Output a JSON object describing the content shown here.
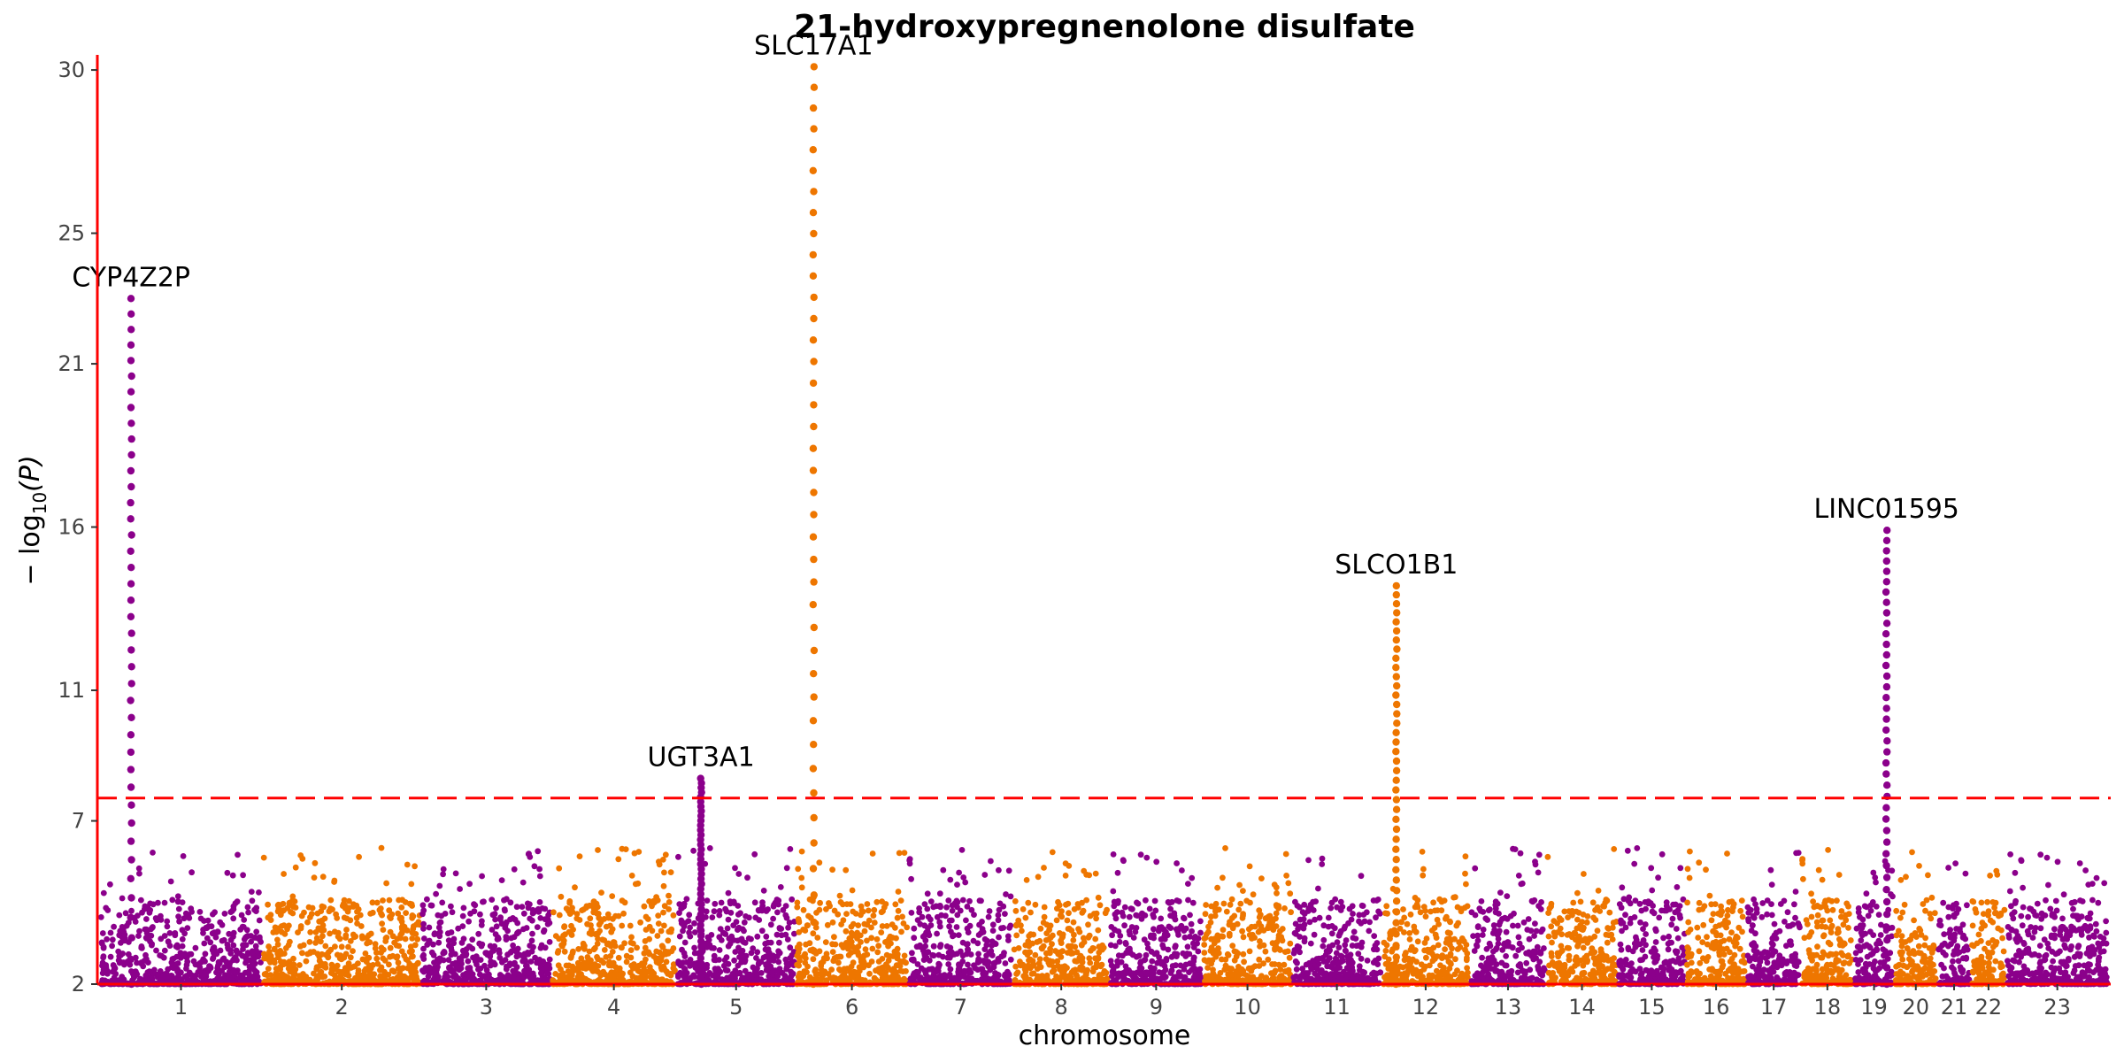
{
  "chart_data": {
    "type": "scatter",
    "title": "21-hydroxypregnenolone disulfate",
    "xlabel": "chromosome",
    "ylabel_prefix": "− log",
    "ylabel_sub": "10",
    "ylabel_suffix": "(P)",
    "yticks": [
      2,
      7,
      11,
      16,
      21,
      25,
      30
    ],
    "ylim": [
      2,
      30.3
    ],
    "significance_threshold": 7.7,
    "colors": {
      "odd": "#8B008B",
      "even": "#EE7600",
      "threshold": "#FF0000",
      "axis": "#FF0000"
    },
    "chromosomes": [
      {
        "label": "1",
        "len": 249,
        "color": "odd"
      },
      {
        "label": "2",
        "len": 243,
        "color": "even"
      },
      {
        "label": "3",
        "len": 198,
        "color": "odd"
      },
      {
        "label": "4",
        "len": 191,
        "color": "even"
      },
      {
        "label": "5",
        "len": 181,
        "color": "odd"
      },
      {
        "label": "6",
        "len": 171,
        "color": "even"
      },
      {
        "label": "7",
        "len": 159,
        "color": "odd"
      },
      {
        "label": "8",
        "len": 146,
        "color": "even"
      },
      {
        "label": "9",
        "len": 141,
        "color": "odd"
      },
      {
        "label": "10",
        "len": 135,
        "color": "even"
      },
      {
        "label": "11",
        "len": 135,
        "color": "odd"
      },
      {
        "label": "12",
        "len": 133,
        "color": "even"
      },
      {
        "label": "13",
        "len": 115,
        "color": "odd"
      },
      {
        "label": "14",
        "len": 107,
        "color": "even"
      },
      {
        "label": "15",
        "len": 102,
        "color": "odd"
      },
      {
        "label": "16",
        "len": 90,
        "color": "even"
      },
      {
        "label": "17",
        "len": 81,
        "color": "odd"
      },
      {
        "label": "18",
        "len": 78,
        "color": "even"
      },
      {
        "label": "19",
        "len": 59,
        "color": "odd"
      },
      {
        "label": "20",
        "len": 63,
        "color": "even"
      },
      {
        "label": "21",
        "len": 48,
        "color": "odd"
      },
      {
        "label": "22",
        "len": 51,
        "color": "even"
      },
      {
        "label": "23",
        "len": 155,
        "color": "odd"
      }
    ],
    "peaks": [
      {
        "chr": "1",
        "pos": 47,
        "top": 23.0,
        "label": "CYP4Z2P"
      },
      {
        "chr": "5",
        "pos": 36,
        "top": 8.3,
        "label": "UGT3A1"
      },
      {
        "chr": "6",
        "pos": 26,
        "top": 30.1,
        "label": "SLC17A1"
      },
      {
        "chr": "12",
        "pos": 21,
        "top": 14.2,
        "label": "SLCO1B1"
      },
      {
        "chr": "19",
        "pos": 49,
        "top": 15.9,
        "label": "LINC01595"
      }
    ]
  }
}
